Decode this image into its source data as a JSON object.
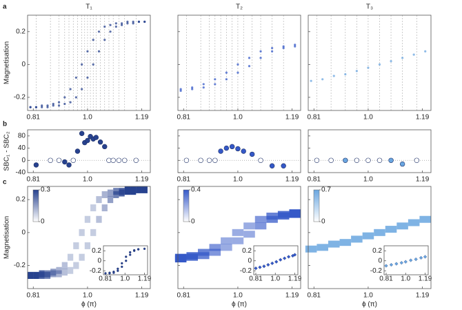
{
  "panel_labels": [
    "a",
    "b",
    "c"
  ],
  "chart_data": [
    {
      "type": "scatter",
      "title": "T₁",
      "ylabel": "Magnetisation",
      "color": "#27428f",
      "ytick_labels": true,
      "xlim": [
        0.79,
        1.22
      ],
      "ylim": [
        -0.28,
        0.3
      ],
      "xticks": [
        0.81,
        {
          "value": 1,
          "label": "1.0"
        },
        1.19
      ],
      "yticks": [
        -0.2,
        0,
        0.2
      ],
      "vlines": [
        0.82,
        0.87,
        0.9,
        0.92,
        0.935,
        0.95,
        0.965,
        0.98,
        0.99,
        1.0,
        1.01,
        1.02,
        1.03,
        1.045,
        1.06,
        1.075,
        1.09,
        1.11,
        1.13,
        1.17
      ],
      "x": [
        0.8,
        0.82,
        0.84,
        0.86,
        0.88,
        0.9,
        0.92,
        0.94,
        0.96,
        0.98,
        1.0,
        1.02,
        1.04,
        1.06,
        1.08,
        1.1,
        1.12,
        1.14,
        1.16,
        1.18,
        1.2,
        0.8,
        0.82,
        0.84,
        0.86,
        0.88,
        0.9,
        0.92,
        0.94,
        0.96,
        0.98,
        1.0,
        1.02,
        1.04,
        1.06,
        1.08,
        1.1,
        1.12,
        1.14,
        1.16,
        1.18,
        1.2
      ],
      "values": [
        -0.26,
        -0.26,
        -0.25,
        -0.25,
        -0.24,
        -0.23,
        -0.2,
        -0.15,
        -0.08,
        0,
        0.08,
        0.15,
        0.2,
        0.23,
        0.24,
        0.25,
        0.25,
        0.26,
        0.26,
        0.26,
        0.26,
        -0.26,
        -0.26,
        -0.26,
        -0.26,
        -0.25,
        -0.25,
        -0.24,
        -0.23,
        -0.2,
        -0.15,
        -0.08,
        0,
        0.08,
        0.15,
        0.2,
        0.23,
        0.24,
        0.25,
        0.25,
        0.26,
        0.26
      ]
    },
    {
      "type": "scatter",
      "title": "T₂",
      "color": "#3559c8",
      "ytick_labels": false,
      "xlim": [
        0.79,
        1.22
      ],
      "ylim": [
        -0.28,
        0.3
      ],
      "xticks": [
        0.81,
        {
          "value": 1,
          "label": "1.0"
        },
        1.19
      ],
      "yticks": [
        -0.2,
        0,
        0.2
      ],
      "vlines": [
        0.82,
        0.87,
        0.9,
        0.92,
        0.94,
        0.96,
        0.98,
        1.0,
        1.02,
        1.05,
        1.08,
        1.12,
        1.16
      ],
      "x": [
        0.8,
        0.84,
        0.88,
        0.92,
        0.96,
        1.0,
        1.04,
        1.08,
        1.12,
        1.16,
        1.2,
        0.8,
        0.84,
        0.88,
        0.92,
        0.96,
        1.0,
        1.04,
        1.08,
        1.12,
        1.16,
        1.2
      ],
      "values": [
        -0.15,
        -0.14,
        -0.12,
        -0.09,
        -0.05,
        0,
        0.04,
        0.08,
        0.1,
        0.11,
        0.12,
        -0.16,
        -0.15,
        -0.14,
        -0.12,
        -0.09,
        -0.05,
        -0.01,
        0.04,
        0.08,
        0.1,
        0.11
      ]
    },
    {
      "type": "scatter",
      "title": "T₃",
      "color": "#6aa6e0",
      "ytick_labels": false,
      "xlim": [
        0.79,
        1.22
      ],
      "ylim": [
        -0.28,
        0.3
      ],
      "xticks": [
        0.81,
        {
          "value": 1,
          "label": "1.0"
        },
        1.19
      ],
      "yticks": [
        -0.2,
        0,
        0.2
      ],
      "vlines": [
        0.82,
        0.87,
        0.92,
        0.96,
        1.0,
        1.04,
        1.08,
        1.12,
        1.17
      ],
      "x": [
        0.8,
        0.84,
        0.88,
        0.92,
        0.96,
        1.0,
        1.04,
        1.08,
        1.12,
        1.16,
        1.2
      ],
      "values": [
        -0.1,
        -0.09,
        -0.07,
        -0.06,
        -0.04,
        -0.02,
        0,
        0.02,
        0.04,
        0.06,
        0.08
      ]
    },
    {
      "type": "scatter",
      "ylabel": "SBC₁ - SBC₂",
      "color": "#27428f",
      "ytick_labels": true,
      "hline": 0,
      "xlim": [
        0.79,
        1.22
      ],
      "ylim": [
        -40,
        100
      ],
      "xticks": [
        0.81,
        {
          "value": 1,
          "label": "1.0"
        },
        1.19
      ],
      "yticks": [
        -40,
        0,
        40,
        80
      ],
      "x": [
        0.82,
        0.87,
        0.9,
        0.92,
        0.935,
        0.95,
        0.965,
        0.98,
        0.99,
        1.0,
        1.01,
        1.02,
        1.03,
        1.045,
        1.06,
        1.075,
        1.09,
        1.11,
        1.13,
        1.17
      ],
      "values": [
        -15,
        0,
        0,
        -5,
        -15,
        0,
        30,
        88,
        58,
        65,
        78,
        70,
        75,
        60,
        45,
        0,
        0,
        0,
        0,
        0
      ],
      "filled": [
        true,
        false,
        false,
        true,
        true,
        false,
        true,
        true,
        true,
        true,
        true,
        true,
        true,
        true,
        true,
        false,
        false,
        false,
        false,
        false
      ]
    },
    {
      "type": "scatter",
      "color": "#3559c8",
      "ytick_labels": false,
      "hline": 0,
      "xlim": [
        0.79,
        1.22
      ],
      "ylim": [
        -40,
        100
      ],
      "xticks": [
        0.81,
        {
          "value": 1,
          "label": "1.0"
        },
        1.19
      ],
      "yticks": [
        -40,
        0,
        40,
        80
      ],
      "x": [
        0.82,
        0.87,
        0.9,
        0.92,
        0.94,
        0.96,
        0.98,
        1.0,
        1.02,
        1.05,
        1.08,
        1.12,
        1.16
      ],
      "values": [
        0,
        0,
        0,
        0,
        30,
        40,
        45,
        38,
        30,
        20,
        0,
        -18,
        -18
      ],
      "filled": [
        false,
        false,
        false,
        false,
        true,
        true,
        true,
        true,
        true,
        true,
        false,
        true,
        true
      ]
    },
    {
      "type": "scatter",
      "color": "#6aa6e0",
      "ytick_labels": false,
      "hline": 0,
      "xlim": [
        0.79,
        1.22
      ],
      "ylim": [
        -40,
        100
      ],
      "xticks": [
        0.81,
        {
          "value": 1,
          "label": "1.0"
        },
        1.19
      ],
      "yticks": [
        -40,
        0,
        40,
        80
      ],
      "x": [
        0.82,
        0.87,
        0.92,
        0.96,
        1.0,
        1.04,
        1.08,
        1.12,
        1.17
      ],
      "values": [
        0,
        0,
        0,
        0,
        0,
        0,
        0,
        -12,
        0
      ],
      "filled": [
        false,
        false,
        true,
        false,
        false,
        false,
        true,
        true,
        false
      ]
    },
    {
      "type": "heatmap",
      "ylabel": "Magnetisation",
      "xlabel": "ϕ (π)",
      "color": "#27428f",
      "ytick_labels": true,
      "xlim": [
        0.79,
        1.22
      ],
      "ylim": [
        -0.34,
        0.28
      ],
      "xticks": [
        0.81,
        {
          "value": 1,
          "label": "1.0"
        },
        1.19
      ],
      "yticks": [
        -0.2,
        0,
        0.2
      ],
      "clim": [
        0,
        0.3
      ],
      "cticks": [
        0,
        0.3
      ],
      "x": [
        0.8,
        0.82,
        0.84,
        0.86,
        0.88,
        0.9,
        0.92,
        0.94,
        0.96,
        0.98,
        1.0,
        1.02,
        1.04,
        1.06,
        1.08,
        1.1,
        1.12,
        1.14,
        1.16,
        1.18,
        1.2,
        0.8,
        0.82,
        0.84,
        0.86,
        0.88,
        0.9,
        0.92,
        0.94,
        0.96,
        0.98,
        1.0,
        1.02,
        1.04,
        1.06,
        1.08,
        1.1,
        1.12,
        1.14,
        1.16,
        1.18,
        1.2
      ],
      "values": [
        -0.26,
        -0.26,
        -0.25,
        -0.25,
        -0.24,
        -0.23,
        -0.2,
        -0.15,
        -0.08,
        0,
        0.08,
        0.15,
        0.2,
        0.23,
        0.24,
        0.25,
        0.25,
        0.26,
        0.26,
        0.26,
        0.26,
        -0.26,
        -0.26,
        -0.26,
        -0.26,
        -0.25,
        -0.25,
        -0.24,
        -0.23,
        -0.2,
        -0.15,
        -0.08,
        0,
        0.08,
        0.15,
        0.2,
        0.23,
        0.24,
        0.25,
        0.25,
        0.26,
        0.26
      ],
      "intensity": [
        0.3,
        0.3,
        0.25,
        0.2,
        0.15,
        0.12,
        0.1,
        0.08,
        0.08,
        0.08,
        0.08,
        0.08,
        0.1,
        0.12,
        0.15,
        0.2,
        0.25,
        0.3,
        0.3,
        0.3,
        0.3,
        0.3,
        0.3,
        0.25,
        0.2,
        0.15,
        0.12,
        0.1,
        0.08,
        0.08,
        0.08,
        0.08,
        0.08,
        0.1,
        0.12,
        0.15,
        0.2,
        0.25,
        0.3,
        0.3,
        0.3,
        0.3
      ],
      "inset": {
        "marker": "circle",
        "xlim": [
          0.79,
          1.22
        ],
        "ylim": [
          -0.28,
          0.3
        ],
        "xticks": [
          0.81,
          {
            "value": 1,
            "label": "1.0"
          },
          1.19
        ],
        "yticks": [
          -0.2,
          0,
          0.2
        ],
        "x": [
          0.81,
          0.85,
          0.89,
          0.93,
          0.97,
          1.01,
          1.05,
          1.09,
          1.13,
          1.19,
          0.85,
          0.89,
          0.93,
          0.97,
          1.01,
          1.05,
          1.09,
          1.13
        ],
        "values": [
          -0.25,
          -0.24,
          -0.22,
          -0.16,
          -0.05,
          0.08,
          0.17,
          0.21,
          0.23,
          0.24,
          -0.25,
          -0.24,
          -0.2,
          -0.12,
          0,
          0.12,
          0.2,
          0.23
        ]
      }
    },
    {
      "type": "heatmap",
      "xlabel": "ϕ (π)",
      "color": "#3559c8",
      "ytick_labels": false,
      "xlim": [
        0.79,
        1.22
      ],
      "ylim": [
        -0.34,
        0.28
      ],
      "xticks": [
        0.81,
        {
          "value": 1,
          "label": "1.0"
        },
        1.19
      ],
      "yticks": [
        -0.2,
        0,
        0.2
      ],
      "clim": [
        0,
        0.4
      ],
      "cticks": [
        0,
        0.4
      ],
      "x": [
        0.8,
        0.84,
        0.88,
        0.92,
        0.96,
        1.0,
        1.04,
        1.08,
        1.12,
        1.16,
        1.2,
        0.8,
        0.84,
        0.88,
        0.92,
        0.96,
        1.0,
        1.04,
        1.08,
        1.12,
        1.16,
        1.2
      ],
      "values": [
        -0.15,
        -0.14,
        -0.12,
        -0.09,
        -0.05,
        0,
        0.04,
        0.08,
        0.1,
        0.11,
        0.12,
        -0.16,
        -0.15,
        -0.14,
        -0.12,
        -0.09,
        -0.05,
        -0.01,
        0.04,
        0.08,
        0.1,
        0.11
      ],
      "intensity": [
        0.4,
        0.35,
        0.3,
        0.25,
        0.2,
        0.2,
        0.2,
        0.25,
        0.3,
        0.35,
        0.4,
        0.4,
        0.35,
        0.3,
        0.25,
        0.2,
        0.2,
        0.2,
        0.25,
        0.3,
        0.35,
        0.4
      ],
      "inset": {
        "marker": "diamond",
        "xlim": [
          0.79,
          1.22
        ],
        "ylim": [
          -0.28,
          0.3
        ],
        "xticks": [
          0.81,
          {
            "value": 1,
            "label": "1.0"
          },
          1.19
        ],
        "yticks": [
          -0.2,
          0,
          0.2
        ],
        "x": [
          0.81,
          0.85,
          0.89,
          0.93,
          0.97,
          1.01,
          1.05,
          1.09,
          1.13,
          1.17,
          1.19
        ],
        "values": [
          -0.15,
          -0.13,
          -0.11,
          -0.08,
          -0.05,
          -0.02,
          0.02,
          0.05,
          0.08,
          0.1,
          0.12
        ]
      }
    },
    {
      "type": "heatmap",
      "xlabel": "ϕ (π)",
      "color": "#6aa6e0",
      "ytick_labels": false,
      "xlim": [
        0.79,
        1.22
      ],
      "ylim": [
        -0.34,
        0.28
      ],
      "xticks": [
        0.81,
        {
          "value": 1,
          "label": "1.0"
        },
        1.19
      ],
      "yticks": [
        -0.2,
        0,
        0.2
      ],
      "clim": [
        0,
        0.7
      ],
      "cticks": [
        0,
        0.7
      ],
      "x": [
        0.8,
        0.84,
        0.88,
        0.92,
        0.96,
        1.0,
        1.04,
        1.08,
        1.12,
        1.16,
        1.2
      ],
      "values": [
        -0.1,
        -0.09,
        -0.07,
        -0.06,
        -0.04,
        -0.02,
        0,
        0.02,
        0.04,
        0.06,
        0.08
      ],
      "intensity": [
        0.6,
        0.6,
        0.6,
        0.6,
        0.6,
        0.6,
        0.6,
        0.6,
        0.6,
        0.6,
        0.6
      ],
      "inset": {
        "marker": "diamond",
        "xlim": [
          0.79,
          1.22
        ],
        "ylim": [
          -0.28,
          0.3
        ],
        "xticks": [
          0.81,
          {
            "value": 1,
            "label": "1.0"
          },
          1.19
        ],
        "yticks": [
          -0.2,
          0,
          0.2
        ],
        "x": [
          0.81,
          0.86,
          0.91,
          0.96,
          1.0,
          1.05,
          1.1,
          1.15,
          1.19
        ],
        "values": [
          -0.1,
          -0.08,
          -0.06,
          -0.04,
          -0.02,
          0.01,
          0.03,
          0.06,
          0.08
        ]
      }
    }
  ]
}
